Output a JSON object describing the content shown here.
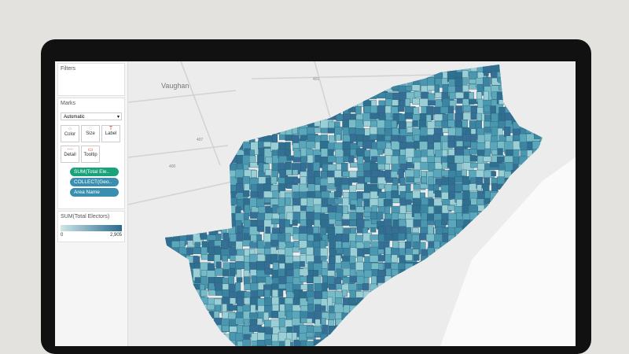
{
  "filters": {
    "title": "Filters"
  },
  "marks": {
    "title": "Marks",
    "mark_type": "Automatic",
    "buttons": [
      "Color",
      "Size",
      "Label",
      "Detail",
      "Tooltip"
    ],
    "pills": [
      "SUM(Total Ele..",
      "COLLECT(Geo..",
      "Area Name"
    ]
  },
  "legend": {
    "title": "SUM(Total Electors)",
    "min_label": "0",
    "max_label": "2,905"
  },
  "map": {
    "labels": [
      "Vaughan",
      "400",
      "407",
      "401"
    ]
  }
}
